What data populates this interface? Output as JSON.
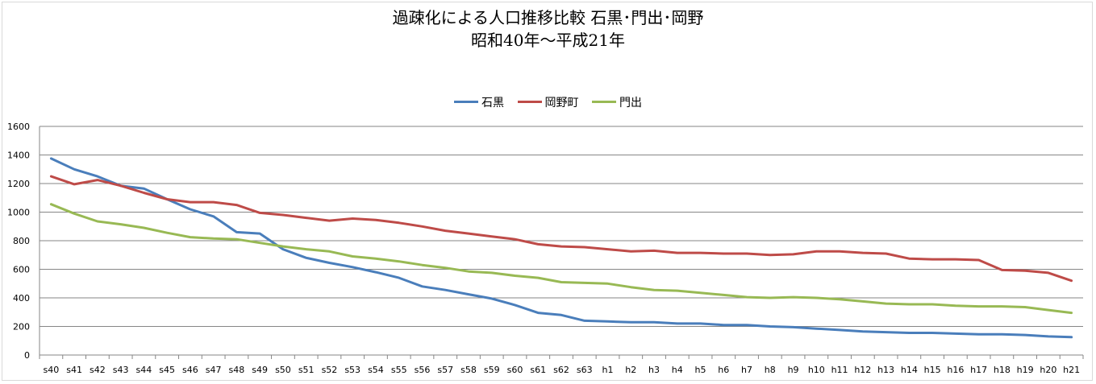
{
  "chart_data": {
    "type": "line",
    "title": "過疎化による人口推移比較 石黒･門出･岡野",
    "subtitle": "昭和40年～平成21年",
    "legend_position": "top",
    "grid": true,
    "ylim": [
      0,
      1600
    ],
    "y_ticks": [
      "0",
      "200",
      "400",
      "600",
      "800",
      "1000",
      "1200",
      "1400",
      "1600"
    ],
    "categories": [
      "s40",
      "s41",
      "s42",
      "s43",
      "s44",
      "s45",
      "s46",
      "s47",
      "s48",
      "s49",
      "s50",
      "s51",
      "s52",
      "s53",
      "s54",
      "s55",
      "s56",
      "s57",
      "s58",
      "s59",
      "s60",
      "s61",
      "s62",
      "s63",
      "h1",
      "h2",
      "h3",
      "h4",
      "h5",
      "h6",
      "h7",
      "h8",
      "h9",
      "h10",
      "h11",
      "h12",
      "h13",
      "h14",
      "h15",
      "h16",
      "h17",
      "h18",
      "h19",
      "h20",
      "h21"
    ],
    "series": [
      {
        "name": "石黒",
        "color": "#4a7ebb",
        "values": [
          1375,
          1300,
          1250,
          1185,
          1165,
          1090,
          1020,
          970,
          860,
          850,
          740,
          680,
          645,
          615,
          580,
          540,
          480,
          455,
          425,
          395,
          350,
          295,
          280,
          240,
          235,
          230,
          230,
          220,
          220,
          210,
          210,
          200,
          195,
          185,
          175,
          165,
          160,
          155,
          155,
          150,
          145,
          145,
          140,
          130,
          125
        ]
      },
      {
        "name": "岡野町",
        "color": "#be4b48",
        "values": [
          1250,
          1195,
          1225,
          1185,
          1135,
          1090,
          1070,
          1070,
          1050,
          995,
          980,
          960,
          940,
          955,
          945,
          925,
          900,
          870,
          850,
          830,
          810,
          775,
          760,
          755,
          740,
          725,
          730,
          715,
          715,
          710,
          710,
          700,
          705,
          725,
          725,
          715,
          710,
          675,
          670,
          670,
          665,
          595,
          590,
          575,
          520
        ]
      },
      {
        "name": "門出",
        "color": "#98b954",
        "values": [
          1055,
          990,
          935,
          915,
          890,
          855,
          825,
          815,
          810,
          785,
          760,
          740,
          725,
          690,
          675,
          655,
          630,
          610,
          585,
          575,
          555,
          540,
          510,
          505,
          500,
          475,
          455,
          450,
          435,
          420,
          405,
          400,
          405,
          400,
          390,
          375,
          360,
          355,
          355,
          345,
          340,
          340,
          335,
          315,
          295
        ]
      }
    ]
  }
}
